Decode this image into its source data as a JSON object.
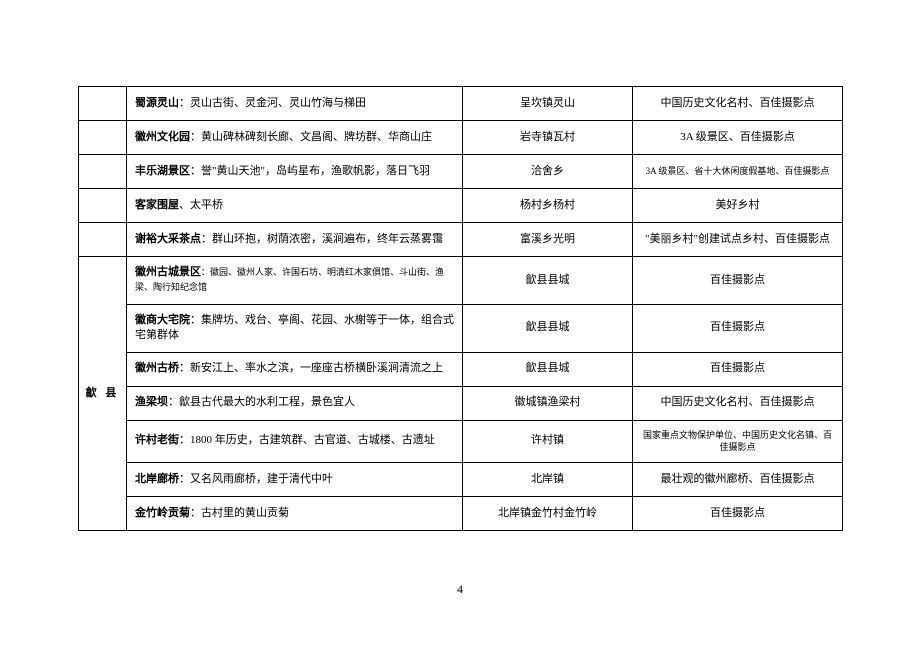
{
  "page_number": "4",
  "region_label": "歙 县",
  "rows": [
    {
      "name": "蜀源灵山",
      "desc": "：灵山古街、灵金河、灵山竹海与梯田",
      "location": "呈坎镇灵山",
      "note": "中国历史文化名村、百佳摄影点"
    },
    {
      "name": "徽州文化园",
      "desc": "：黄山碑林碑刻长廊、文昌阁、牌坊群、华商山庄",
      "location": "岩寺镇瓦村",
      "note": "3A 级景区、百佳摄影点"
    },
    {
      "name": "丰乐湖景区",
      "desc": "：誉\"黄山天池\"，岛屿星布，渔歌帆影，落日飞羽",
      "location": "洽舍乡",
      "note": "3A 级景区、省十大休闲度假基地、百佳摄影点",
      "note_small": true
    },
    {
      "name": "客家围屋",
      "desc": "、太平桥",
      "location": "杨村乡杨村",
      "note": "美好乡村"
    },
    {
      "name": "谢裕大采茶点",
      "desc": "：群山环抱，树荫浓密，溪涧遍布，终年云蒸雾霭",
      "location": "富溪乡光明",
      "note": "\"美丽乡村\"创建试点乡村、百佳摄影点"
    },
    {
      "name": "徽州古城景区",
      "desc": "：徽园、徽州人家、许国石坊、明清红木家俱馆、斗山街、渔梁、陶行知纪念馆",
      "desc_small": true,
      "location": "歙县县城",
      "note": "百佳摄影点"
    },
    {
      "name": "徽商大宅院",
      "desc": "：集牌坊、戏台、亭阁、花园、水榭等于一体，组合式宅第群体",
      "location": "歙县县城",
      "note": "百佳摄影点"
    },
    {
      "name": "徽州古桥",
      "desc": "：新安江上、率水之滨，一座座古桥横卧溪涧清流之上",
      "location": "歙县县城",
      "note": "百佳摄影点"
    },
    {
      "name": "渔梁坝",
      "desc": "：歙县古代最大的水利工程，景色宜人",
      "location": "徽城镇渔梁村",
      "note": "中国历史文化名村、百佳摄影点"
    },
    {
      "name": "许村老街",
      "desc": "：1800 年历史，古建筑群、古官道、古城楼、古遗址",
      "location": "许村镇",
      "note": "国家重点文物保护单位、中国历史文化名镇、百佳摄影点",
      "note_small": true
    },
    {
      "name": "北岸廊桥",
      "desc": "：又名风雨廊桥，建于清代中叶",
      "location": "北岸镇",
      "note": "最壮观的徽州廊桥、百佳摄影点"
    },
    {
      "name": "金竹岭贡菊",
      "desc": "：古村里的黄山贡菊",
      "location": "北岸镇金竹村金竹岭",
      "note": "百佳摄影点"
    }
  ]
}
